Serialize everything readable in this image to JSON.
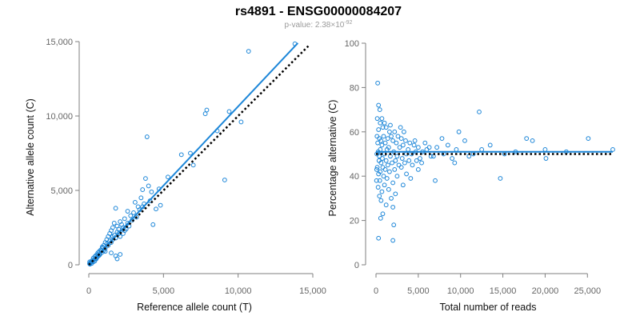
{
  "figure": {
    "title": "rs4891 - ENSG00000084207",
    "pvalue_prefix": "p-value: 2.38×10",
    "pvalue_exponent": "-92"
  },
  "colors": {
    "points": "#1c86d8",
    "fit": "#1c86d8",
    "reference": "#000000",
    "axis": "#7f7f7f"
  },
  "chart_data": [
    {
      "type": "scatter",
      "xlabel": "Reference allele count (T)",
      "ylabel": "Alternative allele count (C)",
      "xlim": [
        0,
        15000
      ],
      "ylim": [
        0,
        15000
      ],
      "xticks": [
        0,
        5000,
        10000,
        15000
      ],
      "yticks": [
        0,
        5000,
        10000,
        15000
      ],
      "xtick_labels": [
        "0",
        "5,000",
        "10,000",
        "15,000"
      ],
      "ytick_labels": [
        "0",
        "5,000",
        "10,000",
        "15,000"
      ],
      "grid": false,
      "lines": [
        {
          "kind": "fit",
          "style": "solid",
          "x": [
            0,
            14000
          ],
          "y": [
            0,
            14900
          ]
        },
        {
          "kind": "reference",
          "style": "dotted",
          "x": [
            0,
            14700
          ],
          "y": [
            0,
            14700
          ]
        }
      ],
      "points": [
        [
          13800,
          14850
        ],
        [
          10700,
          14350
        ],
        [
          9400,
          10300
        ],
        [
          7800,
          10150
        ],
        [
          7900,
          10400
        ],
        [
          10200,
          9600
        ],
        [
          8600,
          9000
        ],
        [
          3900,
          8600
        ],
        [
          6200,
          7400
        ],
        [
          6800,
          7500
        ],
        [
          7000,
          6700
        ],
        [
          9100,
          5700
        ],
        [
          3800,
          5800
        ],
        [
          5300,
          5900
        ],
        [
          4000,
          5300
        ],
        [
          4700,
          5100
        ],
        [
          3600,
          5050
        ],
        [
          4200,
          4900
        ],
        [
          3500,
          4500
        ],
        [
          3100,
          4200
        ],
        [
          3700,
          4100
        ],
        [
          3300,
          3900
        ],
        [
          4800,
          4000
        ],
        [
          4500,
          3750
        ],
        [
          1800,
          3800
        ],
        [
          2600,
          3600
        ],
        [
          3000,
          3500
        ],
        [
          2800,
          3300
        ],
        [
          3200,
          3200
        ],
        [
          2400,
          3100
        ],
        [
          4300,
          2700
        ],
        [
          2100,
          2900
        ],
        [
          1700,
          2800
        ],
        [
          1900,
          2600
        ],
        [
          2200,
          2700
        ],
        [
          1600,
          2500
        ],
        [
          2000,
          2400
        ],
        [
          1500,
          2300
        ],
        [
          1900,
          2200
        ],
        [
          2300,
          2100
        ],
        [
          1400,
          2100
        ],
        [
          1700,
          2000
        ],
        [
          2100,
          1900
        ],
        [
          1300,
          1900
        ],
        [
          1800,
          1800
        ],
        [
          1600,
          1700
        ],
        [
          1200,
          1700
        ],
        [
          1500,
          1500
        ],
        [
          1100,
          1500
        ],
        [
          1000,
          1300
        ],
        [
          1300,
          1300
        ],
        [
          900,
          1200
        ],
        [
          1100,
          1100
        ],
        [
          800,
          1000
        ],
        [
          1000,
          950
        ],
        [
          700,
          900
        ],
        [
          900,
          850
        ],
        [
          600,
          800
        ],
        [
          750,
          700
        ],
        [
          500,
          650
        ],
        [
          650,
          600
        ],
        [
          400,
          550
        ],
        [
          550,
          500
        ],
        [
          300,
          450
        ],
        [
          450,
          400
        ],
        [
          350,
          350
        ],
        [
          250,
          300
        ],
        [
          200,
          250
        ],
        [
          300,
          200
        ],
        [
          150,
          180
        ],
        [
          100,
          120
        ],
        [
          200,
          100
        ],
        [
          50,
          80
        ],
        [
          80,
          40
        ],
        [
          120,
          150
        ],
        [
          60,
          200
        ],
        [
          400,
          250
        ],
        [
          1800,
          600
        ],
        [
          1900,
          400
        ],
        [
          2100,
          700
        ],
        [
          1500,
          800
        ],
        [
          2500,
          2400
        ],
        [
          2700,
          2600
        ],
        [
          2300,
          2500
        ],
        [
          1200,
          1400
        ],
        [
          1400,
          1600
        ],
        [
          950,
          1150
        ],
        [
          850,
          950
        ],
        [
          700,
          650
        ],
        [
          1600,
          1900
        ],
        [
          2000,
          2100
        ],
        [
          2400,
          2300
        ],
        [
          2600,
          2800
        ],
        [
          2900,
          3000
        ],
        [
          3400,
          3700
        ],
        [
          3600,
          3900
        ],
        [
          4100,
          4300
        ],
        [
          1100,
          900
        ],
        [
          600,
          700
        ],
        [
          500,
          400
        ]
      ]
    },
    {
      "type": "scatter",
      "xlabel": "Total number of reads",
      "ylabel": "Percentage alternative (C)",
      "xlim": [
        0,
        28000
      ],
      "ylim": [
        0,
        100
      ],
      "xticks": [
        0,
        5000,
        10000,
        15000,
        20000,
        25000
      ],
      "yticks": [
        0,
        20,
        40,
        60,
        80,
        100
      ],
      "xtick_labels": [
        "0",
        "5,000",
        "10,000",
        "15,000",
        "20,000",
        "25,000"
      ],
      "ytick_labels": [
        "0",
        "20",
        "40",
        "60",
        "80",
        "100"
      ],
      "grid": false,
      "lines": [
        {
          "kind": "fit",
          "style": "solid",
          "x": [
            0,
            28000
          ],
          "y": [
            51,
            51
          ]
        },
        {
          "kind": "reference",
          "style": "dotted",
          "x": [
            0,
            28000
          ],
          "y": [
            50,
            50
          ]
        }
      ],
      "points": [
        [
          200,
          82
        ],
        [
          300,
          72
        ],
        [
          450,
          70
        ],
        [
          700,
          66
        ],
        [
          150,
          66
        ],
        [
          1000,
          64
        ],
        [
          500,
          64
        ],
        [
          800,
          62
        ],
        [
          1200,
          62
        ],
        [
          300,
          61
        ],
        [
          1600,
          60
        ],
        [
          2200,
          60
        ],
        [
          1800,
          58
        ],
        [
          2600,
          58
        ],
        [
          900,
          58
        ],
        [
          400,
          57
        ],
        [
          1400,
          57
        ],
        [
          3000,
          57
        ],
        [
          2000,
          56
        ],
        [
          600,
          56
        ],
        [
          3500,
          56
        ],
        [
          1100,
          55
        ],
        [
          2400,
          55
        ],
        [
          4000,
          55
        ],
        [
          200,
          55
        ],
        [
          3200,
          54
        ],
        [
          700,
          54
        ],
        [
          4500,
          54
        ],
        [
          1500,
          53
        ],
        [
          5000,
          53
        ],
        [
          2800,
          53
        ],
        [
          500,
          52
        ],
        [
          7200,
          53
        ],
        [
          6000,
          52
        ],
        [
          1300,
          52
        ],
        [
          3800,
          52
        ],
        [
          9500,
          52
        ],
        [
          2100,
          51
        ],
        [
          250,
          51
        ],
        [
          5500,
          51
        ],
        [
          4200,
          50
        ],
        [
          1000,
          50
        ],
        [
          3600,
          50
        ],
        [
          8000,
          50
        ],
        [
          6500,
          49
        ],
        [
          2500,
          49
        ],
        [
          400,
          49
        ],
        [
          11000,
          49
        ],
        [
          1700,
          49
        ],
        [
          5200,
          48
        ],
        [
          3100,
          48
        ],
        [
          750,
          48
        ],
        [
          9000,
          48
        ],
        [
          2300,
          47
        ],
        [
          4800,
          47
        ],
        [
          1200,
          47
        ],
        [
          350,
          47
        ],
        [
          3400,
          46
        ],
        [
          1900,
          46
        ],
        [
          600,
          46
        ],
        [
          2700,
          45
        ],
        [
          4300,
          45
        ],
        [
          1400,
          45
        ],
        [
          150,
          44
        ],
        [
          3000,
          44
        ],
        [
          800,
          44
        ],
        [
          2200,
          43
        ],
        [
          1100,
          43
        ],
        [
          5000,
          43
        ],
        [
          500,
          42
        ],
        [
          1600,
          42
        ],
        [
          3600,
          41
        ],
        [
          300,
          41
        ],
        [
          2500,
          40
        ],
        [
          900,
          40
        ],
        [
          1300,
          39
        ],
        [
          4100,
          39
        ],
        [
          7000,
          38
        ],
        [
          450,
          38
        ],
        [
          2000,
          37
        ],
        [
          1000,
          36
        ],
        [
          3200,
          36
        ],
        [
          250,
          35
        ],
        [
          1500,
          34
        ],
        [
          700,
          33
        ],
        [
          2300,
          32
        ],
        [
          400,
          31
        ],
        [
          1800,
          30
        ],
        [
          600,
          29
        ],
        [
          1200,
          27
        ],
        [
          2000,
          26
        ],
        [
          800,
          23
        ],
        [
          550,
          21
        ],
        [
          2100,
          18
        ],
        [
          300,
          12
        ],
        [
          2000,
          11
        ],
        [
          9800,
          60
        ],
        [
          12200,
          69
        ],
        [
          14700,
          39
        ],
        [
          17800,
          57
        ],
        [
          20000,
          52
        ],
        [
          25100,
          57
        ],
        [
          28000,
          52
        ],
        [
          20100,
          48
        ],
        [
          16500,
          51
        ],
        [
          13500,
          54
        ],
        [
          18500,
          56
        ],
        [
          10500,
          56
        ],
        [
          12500,
          52
        ],
        [
          8500,
          54
        ],
        [
          9300,
          46
        ],
        [
          7800,
          57
        ],
        [
          6800,
          49
        ],
        [
          15200,
          50
        ],
        [
          22500,
          51
        ],
        [
          11500,
          50
        ],
        [
          3300,
          60
        ],
        [
          2900,
          62
        ],
        [
          1700,
          63
        ],
        [
          4600,
          56
        ],
        [
          5800,
          55
        ],
        [
          6300,
          53
        ],
        [
          3900,
          47
        ],
        [
          4700,
          51
        ],
        [
          5400,
          46
        ],
        [
          100,
          50
        ],
        [
          120,
          58
        ],
        [
          80,
          43
        ],
        [
          60,
          38
        ]
      ]
    }
  ]
}
